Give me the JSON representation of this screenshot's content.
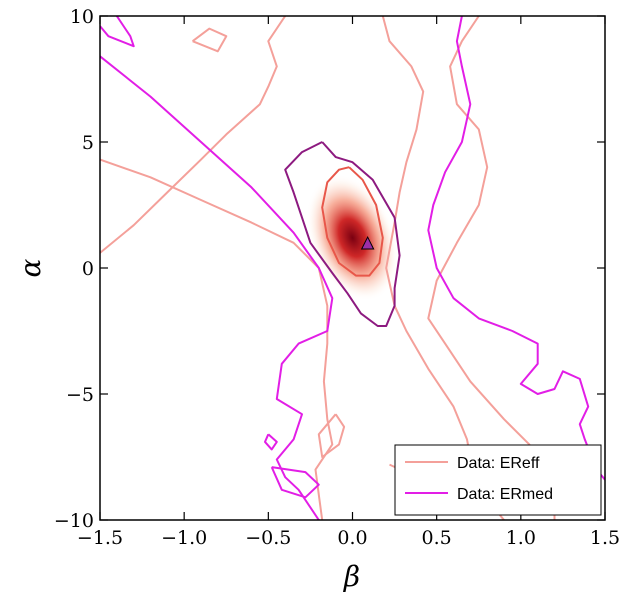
{
  "chart_data": {
    "type": "contour",
    "xlabel": "β",
    "ylabel": "α",
    "xlim": [
      -1.5,
      1.5
    ],
    "ylim": [
      -10,
      10
    ],
    "x_ticks": [
      -1.5,
      -1.0,
      -0.5,
      0.0,
      0.5,
      1.0,
      1.5
    ],
    "y_ticks": [
      -10,
      -5,
      0,
      5,
      10
    ],
    "x_tick_labels": [
      "−1.5",
      "−1.0",
      "−0.5",
      "0.0",
      "0.5",
      "1.0",
      "1.5"
    ],
    "y_tick_labels": [
      "−10",
      "−5",
      "0",
      "5",
      "10"
    ],
    "grid": false,
    "legend_position": "lower-right",
    "density_peak": {
      "x": 0.0,
      "y": 1.2
    },
    "marker": {
      "shape": "triangle",
      "x": 0.09,
      "y": 0.95,
      "color": "#9b2fa6"
    },
    "series": [
      {
        "name": "Data: EReff",
        "color": "#f4a09a",
        "contours": [
          [
            [
              -0.4,
              10
            ],
            [
              -0.5,
              9
            ],
            [
              -0.45,
              8
            ],
            [
              -0.5,
              7.2
            ],
            [
              -0.55,
              6.5
            ],
            [
              -0.75,
              5.3
            ],
            [
              -0.9,
              4.3
            ],
            [
              -1.1,
              3
            ],
            [
              -1.3,
              1.7
            ],
            [
              -1.5,
              0.6
            ]
          ],
          [
            [
              -1.5,
              4.3
            ],
            [
              -1.2,
              3.6
            ],
            [
              -0.9,
              2.7
            ],
            [
              -0.6,
              1.8
            ],
            [
              -0.35,
              1.0
            ],
            [
              -0.2,
              0
            ],
            [
              -0.15,
              -1.5
            ],
            [
              -0.15,
              -3
            ],
            [
              -0.17,
              -4.5
            ],
            [
              -0.15,
              -6
            ],
            [
              -0.12,
              -7
            ],
            [
              -0.22,
              -8
            ],
            [
              -0.2,
              -9
            ],
            [
              -0.18,
              -10
            ]
          ],
          [
            [
              0.18,
              10
            ],
            [
              0.22,
              9
            ],
            [
              0.35,
              8
            ],
            [
              0.42,
              7
            ],
            [
              0.38,
              5.5
            ],
            [
              0.32,
              4.2
            ],
            [
              0.28,
              3
            ],
            [
              0.25,
              1.8
            ],
            [
              0.2,
              0
            ],
            [
              0.25,
              -1.5
            ],
            [
              0.32,
              -2.5
            ],
            [
              0.45,
              -4
            ],
            [
              0.6,
              -5.5
            ],
            [
              0.68,
              -6.8
            ],
            [
              0.72,
              -8.2
            ],
            [
              0.8,
              -9.2
            ],
            [
              0.9,
              -10
            ]
          ],
          [
            [
              0.75,
              10
            ],
            [
              0.65,
              9
            ],
            [
              0.58,
              8
            ],
            [
              0.62,
              6.5
            ],
            [
              0.75,
              5.5
            ],
            [
              0.8,
              4
            ],
            [
              0.75,
              2.5
            ],
            [
              0.62,
              1
            ],
            [
              0.5,
              -0.5
            ],
            [
              0.45,
              -2
            ],
            [
              0.55,
              -3
            ],
            [
              0.7,
              -4.5
            ],
            [
              0.9,
              -6
            ],
            [
              1.05,
              -7
            ],
            [
              1.2,
              -8.5
            ],
            [
              1.2,
              -10
            ]
          ],
          [
            [
              -0.1,
              -5.8
            ],
            [
              -0.05,
              -6.3
            ],
            [
              -0.08,
              -7
            ],
            [
              -0.18,
              -7.5
            ],
            [
              -0.2,
              -6.6
            ],
            [
              -0.1,
              -5.8
            ]
          ],
          [
            [
              -0.95,
              9
            ],
            [
              -0.85,
              9.5
            ],
            [
              -0.75,
              9.2
            ],
            [
              -0.8,
              8.6
            ],
            [
              -0.95,
              9
            ]
          ],
          [
            [
              0.22,
              -7.8
            ],
            [
              0.35,
              -8.2
            ],
            [
              0.55,
              -8.3
            ],
            [
              0.6,
              -8.8
            ],
            [
              0.9,
              -9
            ],
            [
              1.1,
              -9.1
            ],
            [
              1.2,
              -9.2
            ]
          ]
        ]
      },
      {
        "name": "Data: ERmed",
        "color": "#e21ee6",
        "contours": [
          [
            [
              -1.5,
              8.4
            ],
            [
              -1.2,
              6.8
            ],
            [
              -0.9,
              5
            ],
            [
              -0.6,
              3.2
            ],
            [
              -0.35,
              1.4
            ],
            [
              -0.2,
              0
            ],
            [
              -0.12,
              -1.2
            ],
            [
              -0.15,
              -2.5
            ],
            [
              -0.32,
              -3
            ],
            [
              -0.42,
              -3.8
            ],
            [
              -0.45,
              -5.2
            ],
            [
              -0.3,
              -5.8
            ],
            [
              -0.35,
              -6.8
            ],
            [
              -0.45,
              -7.6
            ],
            [
              -0.4,
              -8.3
            ],
            [
              -0.32,
              -8.8
            ],
            [
              -0.2,
              -10
            ]
          ],
          [
            [
              -1.4,
              10
            ],
            [
              -1.32,
              9.2
            ],
            [
              -1.3,
              8.8
            ],
            [
              -1.45,
              9.2
            ],
            [
              -1.5,
              9.6
            ]
          ],
          [
            [
              0.65,
              10
            ],
            [
              0.62,
              9
            ],
            [
              0.65,
              8
            ],
            [
              0.7,
              6.5
            ],
            [
              0.65,
              5
            ],
            [
              0.55,
              3.8
            ],
            [
              0.48,
              2.5
            ],
            [
              0.45,
              1.5
            ],
            [
              0.5,
              0
            ],
            [
              0.6,
              -1.2
            ],
            [
              0.75,
              -2
            ],
            [
              0.95,
              -2.5
            ],
            [
              1.1,
              -3
            ],
            [
              1.1,
              -3.8
            ],
            [
              1.0,
              -4.6
            ],
            [
              1.1,
              -5
            ],
            [
              1.2,
              -4.8
            ],
            [
              1.25,
              -4.1
            ],
            [
              1.35,
              -4.4
            ],
            [
              1.4,
              -5.5
            ],
            [
              1.35,
              -6.2
            ],
            [
              1.38,
              -6.8
            ],
            [
              1.45,
              -8
            ],
            [
              1.5,
              -8.4
            ]
          ],
          [
            [
              -0.48,
              -7.9
            ],
            [
              -0.28,
              -8.1
            ],
            [
              -0.2,
              -8.6
            ],
            [
              -0.28,
              -9.1
            ],
            [
              -0.42,
              -8.8
            ],
            [
              -0.48,
              -7.9
            ]
          ],
          [
            [
              -0.5,
              -6.6
            ],
            [
              -0.45,
              -6.9
            ],
            [
              -0.48,
              -7.2
            ],
            [
              -0.52,
              -6.9
            ],
            [
              -0.5,
              -6.6
            ]
          ]
        ]
      },
      {
        "name": "",
        "color": "#e8574a",
        "contours": [
          [
            [
              -0.02,
              4.0
            ],
            [
              0.06,
              3.5
            ],
            [
              0.14,
              2.5
            ],
            [
              0.18,
              1.2
            ],
            [
              0.16,
              0.2
            ],
            [
              0.1,
              -0.3
            ],
            [
              0.02,
              -0.3
            ],
            [
              -0.08,
              0.2
            ],
            [
              -0.15,
              1.2
            ],
            [
              -0.18,
              2.4
            ],
            [
              -0.15,
              3.4
            ],
            [
              -0.08,
              3.9
            ],
            [
              -0.02,
              4.0
            ]
          ]
        ]
      },
      {
        "name": "",
        "color": "#8d1a80",
        "contours": [
          [
            [
              -0.18,
              5.0
            ],
            [
              -0.1,
              4.4
            ],
            [
              0.0,
              4.2
            ],
            [
              0.12,
              3.5
            ],
            [
              0.25,
              2.0
            ],
            [
              0.28,
              0.5
            ],
            [
              0.25,
              -0.8
            ],
            [
              0.25,
              -1.5
            ],
            [
              0.2,
              -2.3
            ],
            [
              0.15,
              -2.3
            ],
            [
              0.05,
              -1.8
            ],
            [
              -0.03,
              -1.0
            ],
            [
              -0.12,
              -0.2
            ],
            [
              -0.25,
              1.0
            ],
            [
              -0.3,
              2.0
            ],
            [
              -0.35,
              3.0
            ],
            [
              -0.4,
              3.9
            ],
            [
              -0.3,
              4.6
            ],
            [
              -0.18,
              5.0
            ]
          ]
        ]
      }
    ]
  }
}
